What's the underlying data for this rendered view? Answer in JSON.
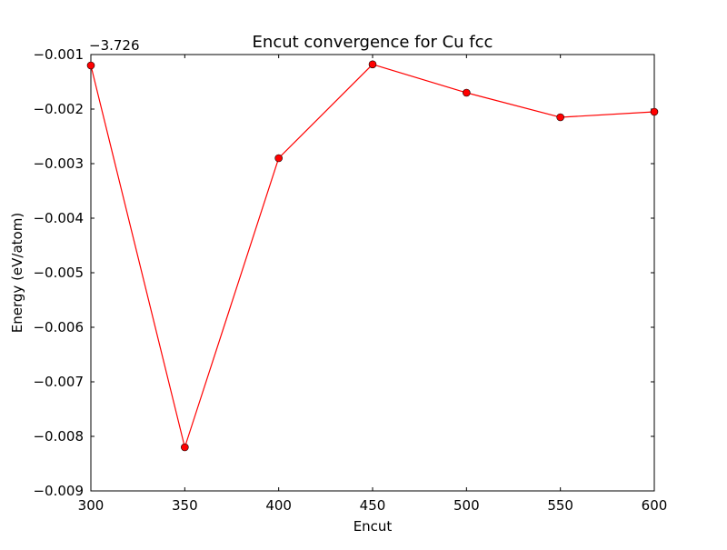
{
  "chart_data": {
    "type": "line",
    "title": "Encut convergence for Cu fcc",
    "xlabel": "Encut",
    "ylabel": "Energy (eV/atom)",
    "y_offset_label": "−3.726",
    "y_offset": -3.726,
    "xlim": [
      300,
      600
    ],
    "ylim": [
      -0.009,
      -0.001
    ],
    "xticks": [
      300,
      350,
      400,
      450,
      500,
      550,
      600
    ],
    "xtick_labels": [
      "300",
      "350",
      "400",
      "450",
      "500",
      "550",
      "600"
    ],
    "yticks": [
      -0.009,
      -0.008,
      -0.007,
      -0.006,
      -0.005,
      -0.004,
      -0.003,
      -0.002,
      -0.001
    ],
    "ytick_labels": [
      "−0.009",
      "−0.008",
      "−0.007",
      "−0.006",
      "−0.005",
      "−0.004",
      "−0.003",
      "−0.002",
      "−0.001"
    ],
    "grid": false,
    "series": [
      {
        "color": "#ff0000",
        "marker": "circle",
        "x": [
          300,
          350,
          400,
          450,
          500,
          550,
          600
        ],
        "y": [
          -0.0012,
          -0.0082,
          -0.0029,
          -0.00118,
          -0.0017,
          -0.00215,
          -0.00205
        ]
      }
    ]
  }
}
